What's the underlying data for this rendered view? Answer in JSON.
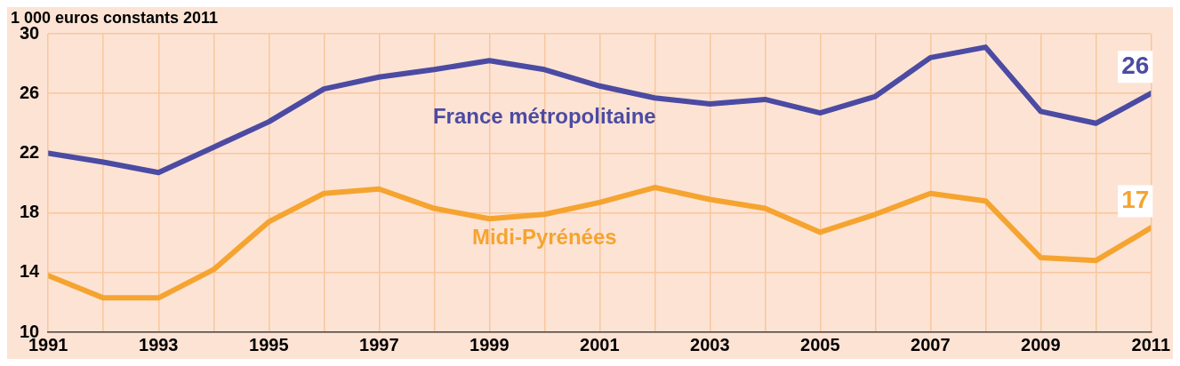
{
  "chart_data": {
    "type": "line",
    "ylabel": "1 000 euros constants 2011",
    "x": [
      1991,
      1992,
      1993,
      1994,
      1995,
      1996,
      1997,
      1998,
      1999,
      2000,
      2001,
      2002,
      2003,
      2004,
      2005,
      2006,
      2007,
      2008,
      2009,
      2010,
      2011
    ],
    "series": [
      {
        "name": "France métropolitaine",
        "color": "#4b4ba3",
        "values": [
          22.0,
          21.4,
          20.7,
          22.4,
          24.1,
          26.3,
          27.1,
          27.6,
          28.2,
          27.6,
          26.5,
          25.7,
          25.3,
          25.6,
          24.7,
          25.8,
          28.4,
          29.1,
          24.8,
          24.0,
          26
        ],
        "value_labels": [
          null,
          null,
          null,
          null,
          null,
          null,
          null,
          null,
          null,
          null,
          null,
          null,
          null,
          null,
          null,
          null,
          null,
          null,
          null,
          null,
          "26"
        ]
      },
      {
        "name": "Midi-Pyrénées",
        "color": "#f5a430",
        "values": [
          13.8,
          12.3,
          12.3,
          14.2,
          17.4,
          19.3,
          19.6,
          18.3,
          17.6,
          17.9,
          18.7,
          19.7,
          18.9,
          18.3,
          16.7,
          17.9,
          19.3,
          18.8,
          15.0,
          14.8,
          17
        ],
        "value_labels": [
          null,
          null,
          null,
          null,
          null,
          null,
          null,
          null,
          null,
          null,
          null,
          null,
          null,
          null,
          null,
          null,
          null,
          null,
          null,
          null,
          "17"
        ]
      }
    ],
    "xlim": [
      1991,
      2011
    ],
    "xticks": [
      1991,
      {
        "value": 1992,
        "label": null
      },
      1993,
      {
        "value": 1994,
        "label": null
      },
      1995,
      {
        "value": 1996,
        "label": null
      },
      1997,
      {
        "value": 1998,
        "label": null
      },
      1999,
      {
        "value": 2000,
        "label": null
      },
      2001,
      {
        "value": 2002,
        "label": null
      },
      2003,
      {
        "value": 2004,
        "label": null
      },
      2005,
      {
        "value": 2006,
        "label": null
      },
      2007,
      {
        "value": 2008,
        "label": null
      },
      2009,
      {
        "value": 2010,
        "label": null
      },
      2011
    ],
    "ylim": [
      10,
      30
    ],
    "yticks": [
      10,
      14,
      18,
      22,
      26,
      30
    ],
    "grid": true,
    "legend": false,
    "marker": "none",
    "line_style": "solid"
  }
}
